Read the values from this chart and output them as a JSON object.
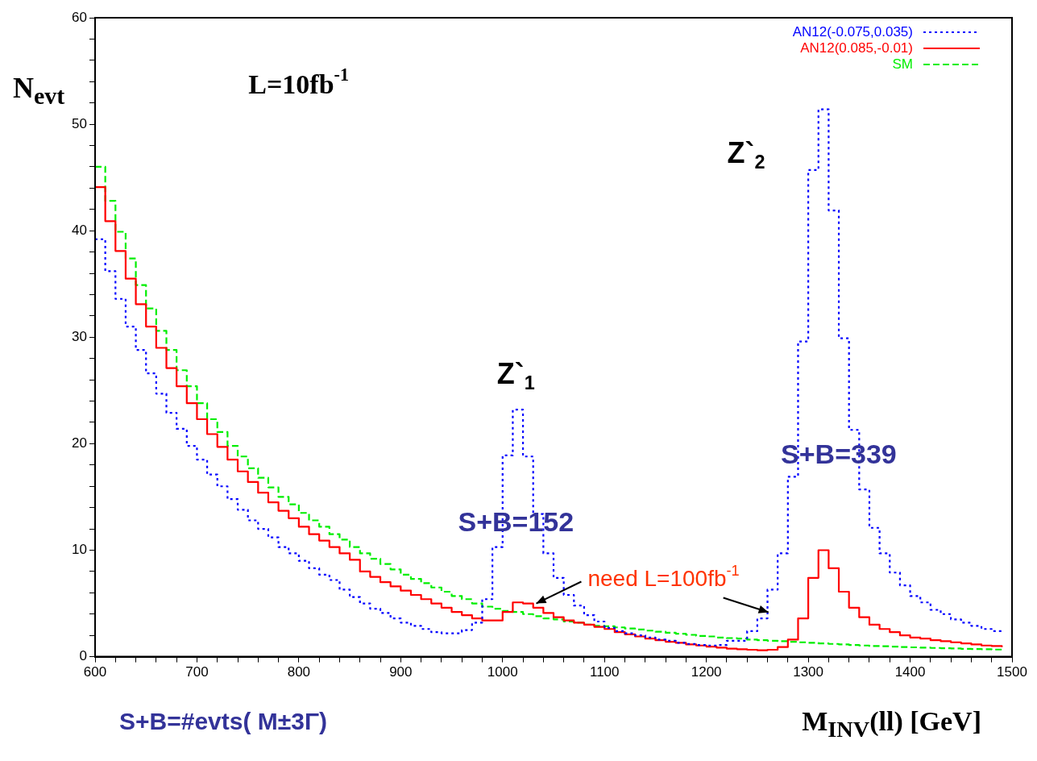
{
  "chart_data": {
    "type": "step",
    "ylabel": "N$_{evt}$",
    "xlabel": "M$_{INV}$(ll) [GeV]",
    "x": [
      600,
      610,
      620,
      630,
      640,
      650,
      660,
      670,
      680,
      690,
      700,
      710,
      720,
      730,
      740,
      750,
      760,
      770,
      780,
      790,
      800,
      810,
      820,
      830,
      840,
      850,
      860,
      870,
      880,
      890,
      900,
      910,
      920,
      930,
      940,
      950,
      960,
      970,
      980,
      990,
      1000,
      1010,
      1020,
      1030,
      1040,
      1050,
      1060,
      1070,
      1080,
      1090,
      1100,
      1110,
      1120,
      1130,
      1140,
      1150,
      1160,
      1170,
      1180,
      1190,
      1200,
      1210,
      1220,
      1230,
      1240,
      1250,
      1260,
      1270,
      1280,
      1290,
      1300,
      1310,
      1320,
      1330,
      1340,
      1350,
      1360,
      1370,
      1380,
      1390,
      1400,
      1410,
      1420,
      1430,
      1440,
      1450,
      1460,
      1470,
      1480,
      1490
    ],
    "series": [
      {
        "name": "AN12(-0.075,0.035)",
        "color": "#0000ff",
        "line_style": "dotted",
        "values": [
          39.2,
          36.2,
          33.6,
          31.0,
          28.8,
          26.6,
          24.7,
          22.9,
          21.4,
          19.8,
          18.5,
          17.1,
          16.0,
          14.8,
          13.8,
          12.8,
          12.0,
          11.2,
          10.3,
          9.7,
          9.0,
          8.3,
          7.7,
          7.2,
          6.3,
          5.6,
          5.0,
          4.5,
          4.1,
          3.6,
          3.2,
          2.9,
          2.6,
          2.3,
          2.2,
          2.2,
          2.5,
          3.2,
          5.4,
          10.3,
          18.9,
          23.2,
          18.8,
          13.4,
          9.7,
          7.4,
          5.8,
          4.8,
          3.9,
          3.3,
          2.7,
          2.4,
          2.2,
          2.0,
          1.8,
          1.6,
          1.5,
          1.3,
          1.2,
          1.1,
          1.05,
          1.1,
          1.5,
          1.5,
          2.4,
          3.6,
          6.3,
          9.7,
          16.9,
          29.6,
          45.7,
          51.4,
          41.9,
          29.9,
          21.3,
          15.7,
          12.1,
          9.7,
          7.9,
          6.7,
          5.7,
          5.1,
          4.4,
          4.0,
          3.5,
          3.2,
          2.9,
          2.6,
          2.4,
          2.2
        ]
      },
      {
        "name": "AN12(0.085,-0.01)",
        "color": "#ff0000",
        "line_style": "solid",
        "values": [
          44.1,
          40.9,
          38.1,
          35.5,
          33.1,
          31.0,
          29.0,
          27.1,
          25.4,
          23.8,
          22.3,
          20.9,
          19.7,
          18.5,
          17.4,
          16.4,
          15.4,
          14.5,
          13.7,
          13.0,
          12.2,
          11.5,
          10.9,
          10.3,
          9.7,
          9.1,
          8.0,
          7.5,
          7.0,
          6.6,
          6.2,
          5.8,
          5.4,
          5.0,
          4.6,
          4.2,
          3.9,
          3.6,
          3.4,
          3.4,
          4.2,
          5.1,
          5.0,
          4.6,
          4.1,
          3.7,
          3.4,
          3.2,
          3.0,
          2.8,
          2.6,
          2.3,
          2.1,
          1.9,
          1.7,
          1.55,
          1.4,
          1.3,
          1.15,
          1.05,
          0.95,
          0.85,
          0.75,
          0.7,
          0.65,
          0.6,
          0.65,
          0.9,
          1.6,
          3.6,
          7.4,
          10.0,
          8.3,
          6.1,
          4.6,
          3.7,
          3.0,
          2.6,
          2.3,
          2.0,
          1.8,
          1.7,
          1.55,
          1.45,
          1.35,
          1.25,
          1.15,
          1.05,
          1.0,
          0.9
        ]
      },
      {
        "name": "SM",
        "color": "#00ee00",
        "line_style": "dashed",
        "values": [
          46.0,
          42.8,
          39.9,
          37.4,
          34.9,
          32.7,
          30.6,
          28.8,
          26.9,
          25.4,
          23.8,
          22.3,
          21.1,
          19.8,
          18.8,
          17.7,
          16.8,
          15.9,
          15.0,
          14.3,
          13.5,
          12.8,
          12.2,
          11.5,
          11.0,
          10.3,
          9.7,
          9.2,
          8.7,
          8.2,
          7.7,
          7.3,
          6.9,
          6.5,
          6.1,
          5.7,
          5.4,
          5.0,
          4.7,
          4.5,
          4.3,
          4.2,
          4.0,
          3.8,
          3.6,
          3.5,
          3.3,
          3.2,
          3.0,
          2.9,
          2.85,
          2.75,
          2.65,
          2.55,
          2.45,
          2.35,
          2.25,
          2.15,
          2.05,
          1.95,
          1.9,
          1.8,
          1.75,
          1.7,
          1.6,
          1.55,
          1.5,
          1.45,
          1.4,
          1.35,
          1.3,
          1.25,
          1.2,
          1.15,
          1.1,
          1.05,
          1.0,
          0.98,
          0.95,
          0.9,
          0.88,
          0.85,
          0.82,
          0.8,
          0.77,
          0.74,
          0.72,
          0.7,
          0.67,
          0.65
        ]
      }
    ],
    "xlim": [
      600,
      1500
    ],
    "xticks": [
      600,
      {
        "value": 620,
        "label": null
      },
      {
        "value": 640,
        "label": null
      },
      {
        "value": 660,
        "label": null
      },
      {
        "value": 680,
        "label": null
      },
      700,
      {
        "value": 720,
        "label": null
      },
      {
        "value": 740,
        "label": null
      },
      {
        "value": 760,
        "label": null
      },
      {
        "value": 780,
        "label": null
      },
      800,
      {
        "value": 820,
        "label": null
      },
      {
        "value": 840,
        "label": null
      },
      {
        "value": 860,
        "label": null
      },
      {
        "value": 880,
        "label": null
      },
      900,
      {
        "value": 920,
        "label": null
      },
      {
        "value": 940,
        "label": null
      },
      {
        "value": 960,
        "label": null
      },
      {
        "value": 980,
        "label": null
      },
      1000,
      {
        "value": 1020,
        "label": null
      },
      {
        "value": 1040,
        "label": null
      },
      {
        "value": 1060,
        "label": null
      },
      {
        "value": 1080,
        "label": null
      },
      1100,
      {
        "value": 1120,
        "label": null
      },
      {
        "value": 1140,
        "label": null
      },
      {
        "value": 1160,
        "label": null
      },
      {
        "value": 1180,
        "label": null
      },
      1200,
      {
        "value": 1220,
        "label": null
      },
      {
        "value": 1240,
        "label": null
      },
      {
        "value": 1260,
        "label": null
      },
      {
        "value": 1280,
        "label": null
      },
      1300,
      {
        "value": 1320,
        "label": null
      },
      {
        "value": 1340,
        "label": null
      },
      {
        "value": 1360,
        "label": null
      },
      {
        "value": 1380,
        "label": null
      },
      1400,
      {
        "value": 1420,
        "label": null
      },
      {
        "value": 1440,
        "label": null
      },
      {
        "value": 1460,
        "label": null
      },
      {
        "value": 1480,
        "label": null
      },
      1500
    ],
    "ylim": [
      0,
      60
    ],
    "yticks": [
      0,
      {
        "value": 2,
        "label": null
      },
      {
        "value": 4,
        "label": null
      },
      {
        "value": 6,
        "label": null
      },
      {
        "value": 8,
        "label": null
      },
      10,
      {
        "value": 12,
        "label": null
      },
      {
        "value": 14,
        "label": null
      },
      {
        "value": 16,
        "label": null
      },
      {
        "value": 18,
        "label": null
      },
      20,
      {
        "value": 22,
        "label": null
      },
      {
        "value": 24,
        "label": null
      },
      {
        "value": 26,
        "label": null
      },
      {
        "value": 28,
        "label": null
      },
      30,
      {
        "value": 32,
        "label": null
      },
      {
        "value": 34,
        "label": null
      },
      {
        "value": 36,
        "label": null
      },
      {
        "value": 38,
        "label": null
      },
      40,
      {
        "value": 42,
        "label": null
      },
      {
        "value": 44,
        "label": null
      },
      {
        "value": 46,
        "label": null
      },
      {
        "value": 48,
        "label": null
      },
      50,
      {
        "value": 52,
        "label": null
      },
      {
        "value": 54,
        "label": null
      },
      {
        "value": 56,
        "label": null
      },
      {
        "value": 58,
        "label": null
      },
      60
    ],
    "grid": false,
    "legend": "top right",
    "marker": "none",
    "annotations": [
      "L=10fb$^{-1}$",
      "Z`$_{1}$",
      "Z`$_{2}$",
      "S+B=152",
      "S+B=339",
      {
        "text": "need L=100fb$^{-1}$",
        "x": 1033,
        "y": 5
      },
      "S+B=#evts( M±3Γ)"
    ]
  }
}
